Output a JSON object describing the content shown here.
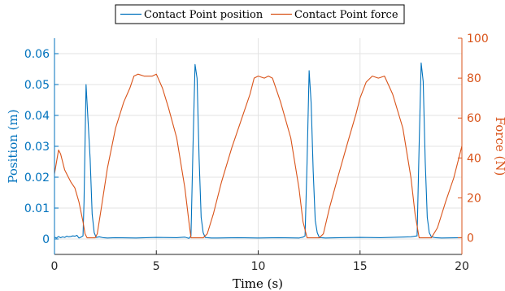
{
  "chart_data": {
    "type": "line",
    "legend": {
      "placement": "top-center",
      "entries": [
        "Contact Point position",
        "Contact Point force"
      ]
    },
    "xlabel": "Time (s)",
    "ylabel_left": "Position (m)",
    "ylabel_right": "Force (N)",
    "xlim": [
      0,
      20
    ],
    "ylim_left": [
      -0.005,
      0.065
    ],
    "ylim_right": [
      -8.33,
      100
    ],
    "x_ticks": [
      "0",
      "5",
      "10",
      "15",
      "20"
    ],
    "y_left_ticks": [
      "0",
      "0.01",
      "0.02",
      "0.03",
      "0.04",
      "0.05",
      "0.06"
    ],
    "y_right_ticks": [
      "0",
      "20",
      "40",
      "60",
      "80",
      "100"
    ],
    "grid": true,
    "colors": {
      "position": "#0072BD",
      "force": "#D95319"
    },
    "series": [
      {
        "name": "Contact Point position",
        "axis": "left",
        "x": [
          0,
          0.1,
          0.2,
          0.3,
          0.4,
          0.5,
          0.6,
          0.7,
          0.8,
          0.9,
          1.0,
          1.1,
          1.2,
          1.3,
          1.4,
          1.45,
          1.55,
          1.65,
          1.75,
          1.85,
          1.95,
          2.05,
          2.2,
          2.4,
          2.6,
          3,
          4,
          5,
          6,
          6.4,
          6.6,
          6.7,
          6.8,
          6.9,
          7.0,
          7.1,
          7.2,
          7.3,
          7.4,
          7.5,
          7.7,
          8,
          9,
          10,
          11,
          12,
          12.2,
          12.3,
          12.4,
          12.5,
          12.6,
          12.7,
          12.8,
          12.9,
          13.0,
          13.1,
          13.3,
          14,
          15,
          16,
          17,
          17.5,
          17.7,
          17.8,
          17.9,
          18.0,
          18.1,
          18.2,
          18.3,
          18.4,
          18.5,
          18.7,
          19,
          20
        ],
        "y": [
          0.0006,
          0.0003,
          0.0008,
          0.0004,
          0.0007,
          0.0005,
          0.0009,
          0.0007,
          0.0008,
          0.001,
          0.0009,
          0.0012,
          0.0003,
          0.0006,
          0.001,
          0.012,
          0.05,
          0.038,
          0.026,
          0.008,
          0.002,
          0.0005,
          0.0007,
          0.0004,
          0.0003,
          0.0004,
          0.0003,
          0.0005,
          0.0004,
          0.0006,
          0.0002,
          0.001,
          0.03,
          0.0565,
          0.052,
          0.026,
          0.007,
          0.002,
          0.0005,
          0.0004,
          0.0003,
          0.0003,
          0.0004,
          0.0003,
          0.0004,
          0.0003,
          0.0006,
          0.001,
          0.025,
          0.0545,
          0.044,
          0.022,
          0.006,
          0.002,
          0.0005,
          0.0004,
          0.0003,
          0.0004,
          0.0005,
          0.0004,
          0.0006,
          0.0007,
          0.0009,
          0.001,
          0.03,
          0.057,
          0.051,
          0.025,
          0.007,
          0.002,
          0.0007,
          0.0004,
          0.0003,
          0.0004
        ]
      },
      {
        "name": "Contact Point force",
        "axis": "right",
        "x": [
          0,
          0.1,
          0.2,
          0.3,
          0.4,
          0.5,
          0.6,
          0.8,
          1.0,
          1.2,
          1.4,
          1.5,
          1.6,
          1.8,
          2.0,
          2.1,
          2.3,
          2.6,
          3.0,
          3.4,
          3.7,
          3.9,
          4.1,
          4.4,
          4.8,
          5.0,
          5.3,
          5.6,
          6.0,
          6.4,
          6.6,
          6.7,
          6.9,
          7.3,
          7.5,
          7.8,
          8.2,
          8.7,
          9.2,
          9.6,
          9.8,
          10.0,
          10.3,
          10.5,
          10.7,
          11.1,
          11.6,
          12.0,
          12.2,
          12.4,
          12.7,
          13.0,
          13.2,
          13.5,
          13.9,
          14.4,
          14.8,
          15.0,
          15.3,
          15.6,
          15.9,
          16.2,
          16.6,
          17.1,
          17.5,
          17.7,
          17.9,
          18.3,
          18.5,
          18.8,
          19.2,
          19.6,
          20.0
        ],
        "y": [
          32,
          38,
          44,
          42,
          38,
          34,
          32,
          28,
          25,
          18,
          8,
          2,
          0,
          0,
          0,
          2,
          15,
          35,
          55,
          68,
          75,
          81,
          82,
          81,
          81,
          82,
          75,
          65,
          50,
          25,
          8,
          0,
          0,
          0,
          2,
          12,
          28,
          45,
          60,
          72,
          80,
          81,
          80,
          81,
          80,
          68,
          50,
          25,
          8,
          0,
          0,
          0,
          2,
          15,
          30,
          48,
          62,
          70,
          78,
          81,
          80,
          81,
          72,
          55,
          30,
          12,
          0,
          0,
          0,
          5,
          18,
          30,
          46
        ]
      }
    ]
  }
}
